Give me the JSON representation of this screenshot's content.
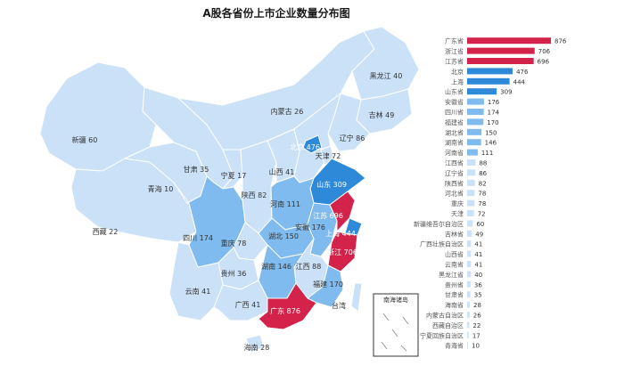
{
  "chart_data": [
    {
      "type": "map",
      "title": "A股各省份上市企业数量分布图",
      "regions": [
        {
          "name": "广东",
          "value": 876
        },
        {
          "name": "浙江",
          "value": 706
        },
        {
          "name": "江苏",
          "value": 696
        },
        {
          "name": "北京",
          "value": 476
        },
        {
          "name": "上海",
          "value": 444
        },
        {
          "name": "山东",
          "value": 309
        },
        {
          "name": "安徽",
          "value": 176
        },
        {
          "name": "四川",
          "value": 174
        },
        {
          "name": "福建",
          "value": 170
        },
        {
          "name": "湖北",
          "value": 150
        },
        {
          "name": "湖南",
          "value": 146
        },
        {
          "name": "河南",
          "value": 111
        },
        {
          "name": "江西",
          "value": 88
        },
        {
          "name": "辽宁",
          "value": 86
        },
        {
          "name": "陕西",
          "value": 82
        },
        {
          "name": "重庆",
          "value": 78
        },
        {
          "name": "天津",
          "value": 72
        },
        {
          "name": "新疆",
          "value": 60
        },
        {
          "name": "吉林",
          "value": 49
        },
        {
          "name": "广西",
          "value": 41
        },
        {
          "name": "山西",
          "value": 41
        },
        {
          "name": "云南",
          "value": 41
        },
        {
          "name": "黑龙江",
          "value": 40
        },
        {
          "name": "贵州",
          "value": 36
        },
        {
          "name": "甘肃",
          "value": 35
        },
        {
          "name": "海南",
          "value": 28
        },
        {
          "name": "内蒙古",
          "value": 26
        },
        {
          "name": "西藏",
          "value": 22
        },
        {
          "name": "宁夏",
          "value": 17
        },
        {
          "name": "青海",
          "value": 10
        }
      ],
      "other_labels": [
        "台湾",
        "南海诸岛"
      ]
    },
    {
      "type": "bar",
      "orientation": "horizontal",
      "categories": [
        "广东省",
        "浙江省",
        "江苏省",
        "北京",
        "上海",
        "山东省",
        "安徽省",
        "四川省",
        "福建省",
        "湖北省",
        "湖南省",
        "河南省",
        "江西省",
        "辽宁省",
        "陕西省",
        "河北省",
        "重庆",
        "天津",
        "新疆维吾尔自治区",
        "吉林省",
        "广西壮族自治区",
        "山西省",
        "云南省",
        "黑龙江省",
        "贵州省",
        "甘肃省",
        "海南省",
        "内蒙古自治区",
        "西藏自治区",
        "宁夏回族自治区",
        "青海省"
      ],
      "values": [
        876,
        706,
        696,
        476,
        444,
        309,
        176,
        174,
        170,
        150,
        146,
        111,
        88,
        86,
        82,
        78,
        78,
        72,
        60,
        49,
        41,
        41,
        41,
        40,
        36,
        35,
        28,
        26,
        22,
        17,
        10
      ],
      "xlim": [
        0,
        876
      ]
    }
  ],
  "colors": {
    "high": "#d3234a",
    "mid": "#2f89d9",
    "light": "#7fbbee",
    "pale": "#cbe1f7",
    "outline": "#ffffff"
  }
}
